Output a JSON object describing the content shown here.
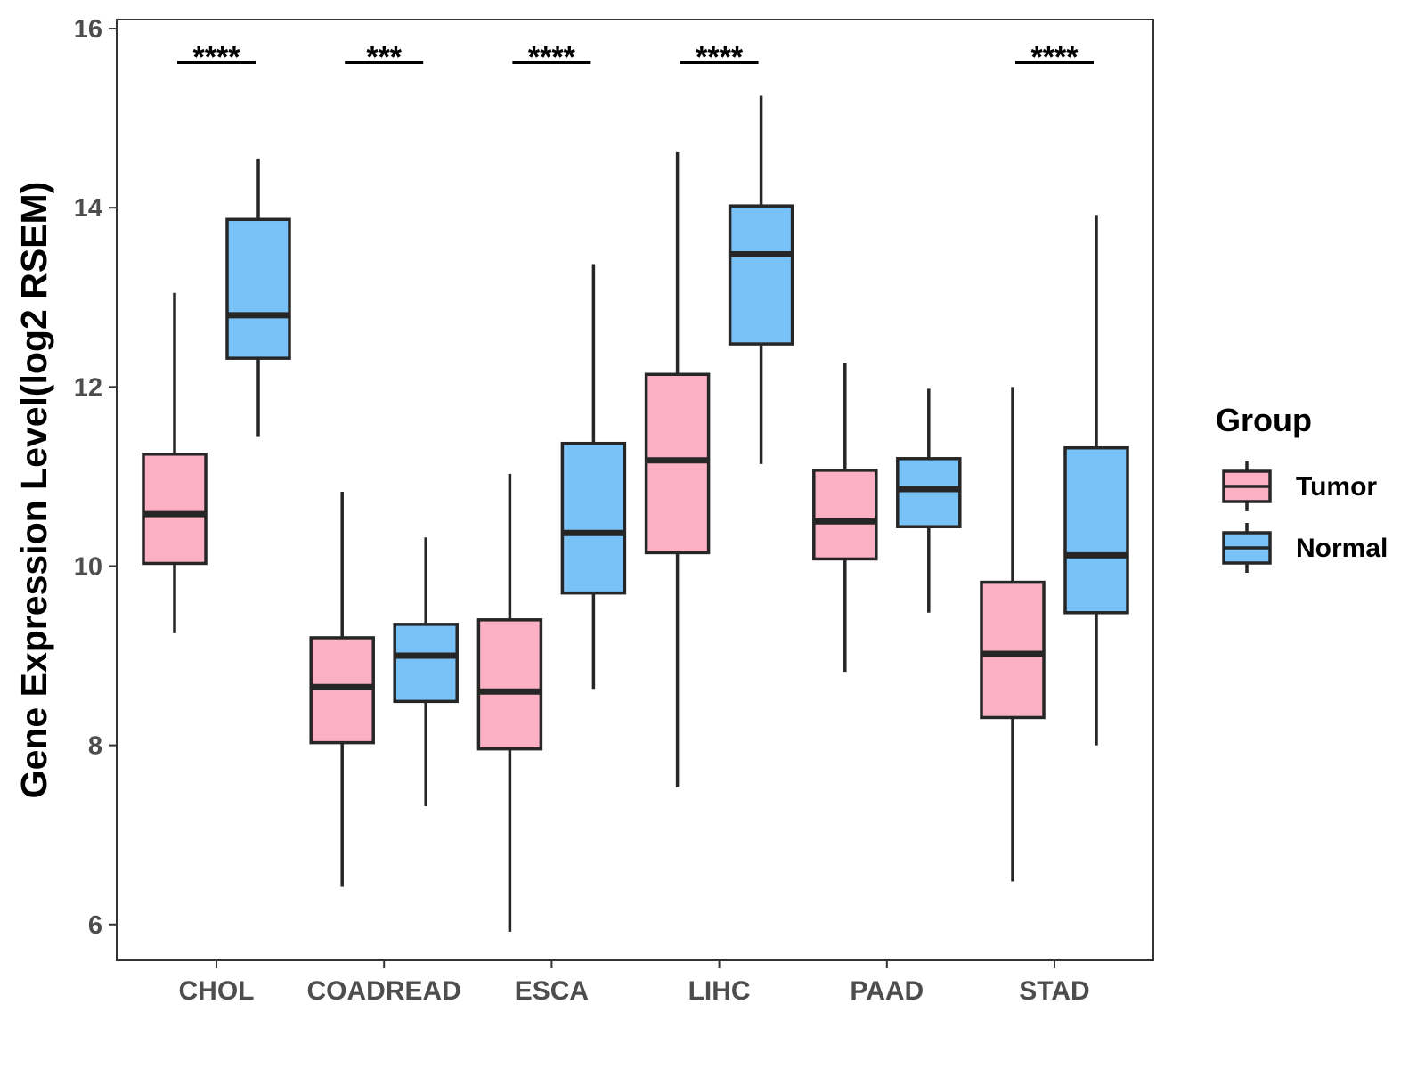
{
  "chart_data": {
    "type": "boxplot",
    "title": "",
    "xlabel": "",
    "ylabel": "Gene Expression Level(log2 RSEM)",
    "ylim": [
      5.6,
      16.1
    ],
    "yticks": [
      6,
      8,
      10,
      12,
      14,
      16
    ],
    "categories": [
      "CHOL",
      "COADREAD",
      "ESCA",
      "LIHC",
      "PAAD",
      "STAD"
    ],
    "legend": {
      "title": "Group",
      "position": "right",
      "entries": [
        {
          "name": "Tumor",
          "color": "#FBB1C3"
        },
        {
          "name": "Normal",
          "color": "#79C2F7"
        }
      ]
    },
    "series": [
      {
        "name": "Tumor",
        "color": "#FBB1C3",
        "boxes": [
          {
            "category": "CHOL",
            "min": 9.25,
            "q1": 10.03,
            "median": 10.58,
            "q3": 11.25,
            "max": 13.05
          },
          {
            "category": "COADREAD",
            "min": 6.42,
            "q1": 8.03,
            "median": 8.65,
            "q3": 9.2,
            "max": 10.83
          },
          {
            "category": "ESCA",
            "min": 5.92,
            "q1": 7.96,
            "median": 8.6,
            "q3": 9.4,
            "max": 11.03
          },
          {
            "category": "LIHC",
            "min": 7.53,
            "q1": 10.15,
            "median": 11.18,
            "q3": 12.14,
            "max": 14.62
          },
          {
            "category": "PAAD",
            "min": 8.82,
            "q1": 10.08,
            "median": 10.5,
            "q3": 11.07,
            "max": 12.27
          },
          {
            "category": "STAD",
            "min": 6.48,
            "q1": 8.31,
            "median": 9.02,
            "q3": 9.82,
            "max": 12.0
          }
        ]
      },
      {
        "name": "Normal",
        "color": "#79C2F7",
        "boxes": [
          {
            "category": "CHOL",
            "min": 11.45,
            "q1": 12.32,
            "median": 12.8,
            "q3": 13.87,
            "max": 14.55
          },
          {
            "category": "COADREAD",
            "min": 7.32,
            "q1": 8.49,
            "median": 9.0,
            "q3": 9.35,
            "max": 10.32
          },
          {
            "category": "ESCA",
            "min": 8.63,
            "q1": 9.7,
            "median": 10.37,
            "q3": 11.37,
            "max": 13.37
          },
          {
            "category": "LIHC",
            "min": 11.14,
            "q1": 12.48,
            "median": 13.48,
            "q3": 14.02,
            "max": 15.25
          },
          {
            "category": "PAAD",
            "min": 9.48,
            "q1": 10.44,
            "median": 10.86,
            "q3": 11.2,
            "max": 11.98
          },
          {
            "category": "STAD",
            "min": 8.0,
            "q1": 9.48,
            "median": 10.12,
            "q3": 11.32,
            "max": 13.92
          }
        ]
      }
    ],
    "significance": [
      {
        "category": "CHOL",
        "label": "****"
      },
      {
        "category": "COADREAD",
        "label": "***"
      },
      {
        "category": "ESCA",
        "label": "****"
      },
      {
        "category": "LIHC",
        "label": "****"
      },
      {
        "category": "PAAD",
        "label": ""
      },
      {
        "category": "STAD",
        "label": "****"
      }
    ],
    "significance_y": 15.62
  }
}
